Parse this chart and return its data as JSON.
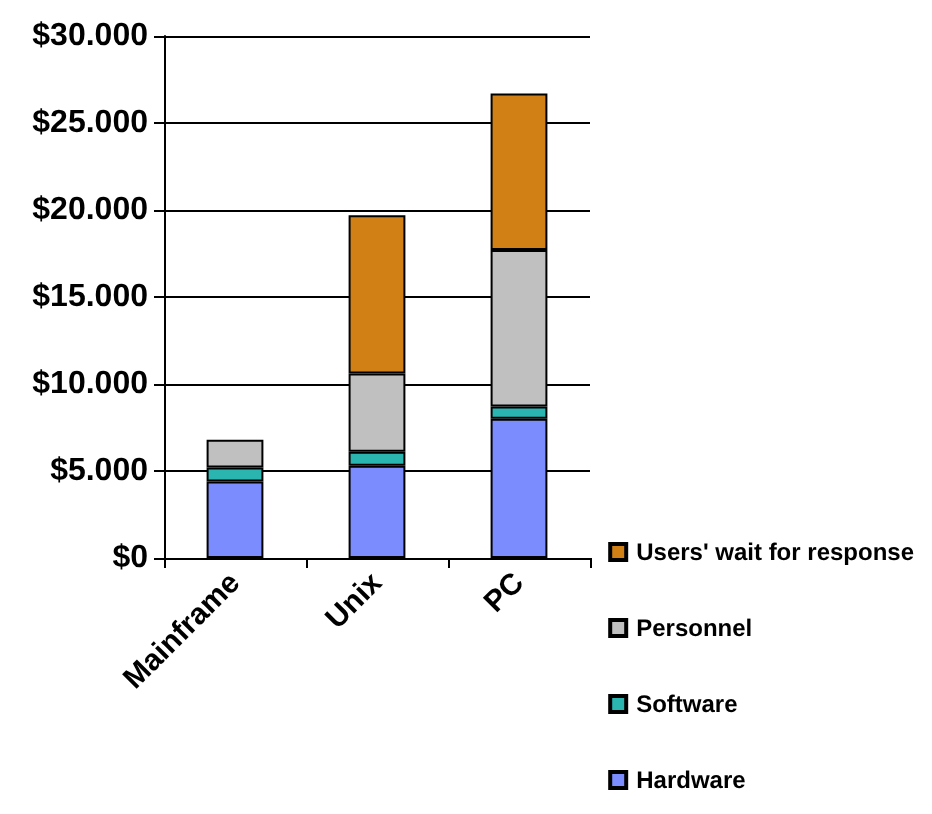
{
  "chart_data": {
    "type": "bar",
    "stacked": true,
    "categories": [
      "Mainframe",
      "Unix",
      "PC"
    ],
    "series": [
      {
        "name": "Hardware",
        "color": "#7b8cff",
        "values": [
          4400,
          5300,
          8000
        ]
      },
      {
        "name": "Software",
        "color": "#2ab5b0",
        "values": [
          800,
          800,
          700
        ]
      },
      {
        "name": "Personnel",
        "color": "#c0c0c0",
        "values": [
          1600,
          4500,
          9000
        ]
      },
      {
        "name": "Users' wait for response",
        "color": "#d08014",
        "values": [
          null,
          9100,
          9000
        ]
      }
    ],
    "ylim": [
      0,
      30000
    ],
    "yticks": [
      {
        "value": 0,
        "label": "$0"
      },
      {
        "value": 5000,
        "label": "$5.000"
      },
      {
        "value": 10000,
        "label": "$10.000"
      },
      {
        "value": 15000,
        "label": "$15.000"
      },
      {
        "value": 20000,
        "label": "$20.000"
      },
      {
        "value": 25000,
        "label": "$25.000"
      },
      {
        "value": 30000,
        "label": "$30.000"
      }
    ],
    "grid": "y",
    "legend": "bottom right"
  }
}
